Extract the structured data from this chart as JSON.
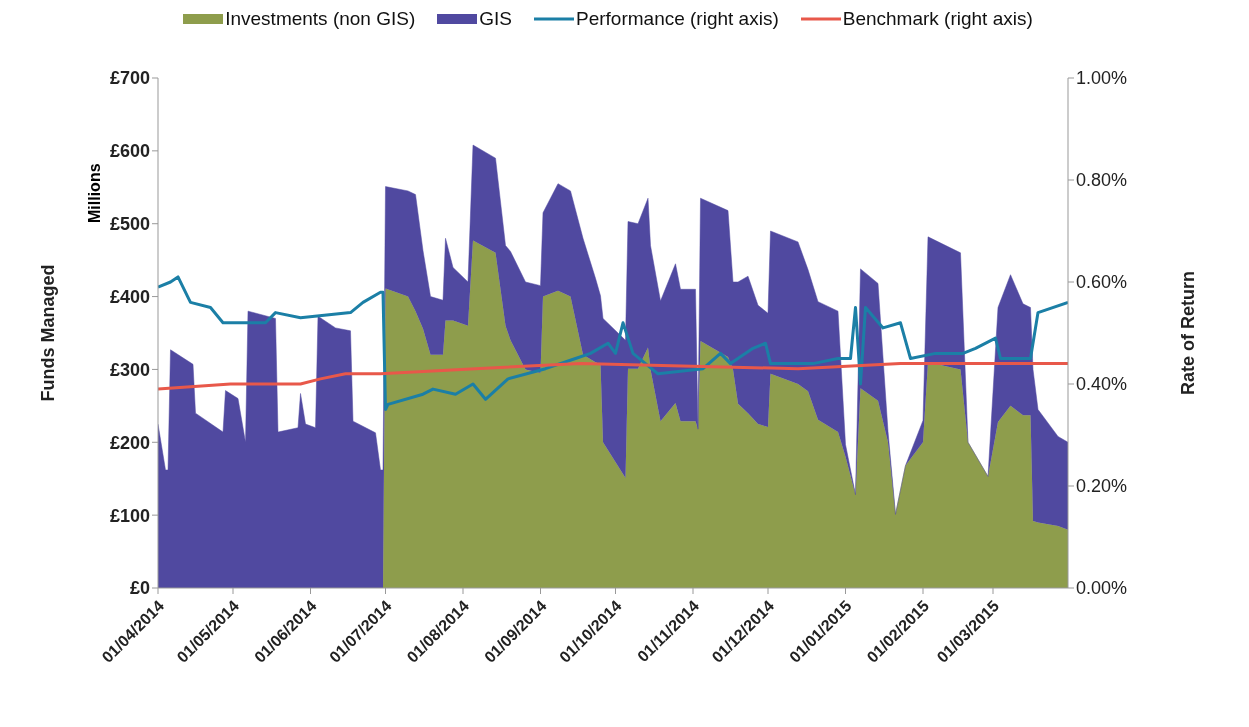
{
  "chart_data": {
    "type": "area",
    "stacked": true,
    "legend": "top",
    "ylabel": "Funds Managed",
    "y2label": "Rate of Return",
    "annotations": [
      "Millions"
    ],
    "x": [
      "2014-04-01",
      "2014-04-04",
      "2014-04-05",
      "2014-04-06",
      "2014-04-15",
      "2014-04-16",
      "2014-04-27",
      "2014-04-28",
      "2014-05-03",
      "2014-05-06",
      "2014-05-07",
      "2014-05-18",
      "2014-05-19",
      "2014-05-27",
      "2014-05-28",
      "2014-05-30",
      "2014-06-03",
      "2014-06-04",
      "2014-06-11",
      "2014-06-17",
      "2014-06-18",
      "2014-06-27",
      "2014-06-29",
      "2014-06-30",
      "2014-07-01",
      "2014-07-10",
      "2014-07-13",
      "2014-07-16",
      "2014-07-19",
      "2014-07-24",
      "2014-07-25",
      "2014-07-28",
      "2014-08-03",
      "2014-08-05",
      "2014-08-14",
      "2014-08-18",
      "2014-08-20",
      "2014-08-26",
      "2014-09-01",
      "2014-09-02",
      "2014-09-08",
      "2014-09-13",
      "2014-09-18",
      "2014-09-23",
      "2014-09-25",
      "2014-09-26",
      "2014-10-05",
      "2014-10-06",
      "2014-10-10",
      "2014-10-14",
      "2014-10-15",
      "2014-10-19",
      "2014-10-25",
      "2014-10-27",
      "2014-11-02",
      "2014-11-03",
      "2014-11-04",
      "2014-11-15",
      "2014-11-17",
      "2014-11-19",
      "2014-11-23",
      "2014-11-27",
      "2014-12-01",
      "2014-12-02",
      "2014-12-13",
      "2014-12-17",
      "2014-12-21",
      "2014-12-29",
      "2015-01-01",
      "2015-01-05",
      "2015-01-07",
      "2015-01-14",
      "2015-01-18",
      "2015-01-21",
      "2015-01-25",
      "2015-02-01",
      "2015-02-03",
      "2015-02-16",
      "2015-02-19",
      "2015-02-27",
      "2015-03-03",
      "2015-03-08",
      "2015-03-13",
      "2015-03-16",
      "2015-03-17",
      "2015-03-19",
      "2015-03-27",
      "2015-03-31"
    ],
    "series": [
      {
        "name": "Investments (non GIS)",
        "color": "#8e9d4c",
        "values": [
          0,
          0,
          0,
          0,
          0,
          0,
          0,
          0,
          0,
          0,
          0,
          0,
          0,
          0,
          0,
          0,
          0,
          0,
          0,
          0,
          0,
          0,
          0,
          0,
          411,
          400,
          380,
          356,
          320,
          320,
          367,
          367,
          360,
          477,
          460,
          360,
          340,
          300,
          295,
          400,
          408,
          400,
          320,
          310,
          307,
          200,
          151,
          301,
          301,
          330,
          300,
          229,
          254,
          229,
          229,
          218,
          339,
          317,
          300,
          253,
          240,
          225,
          221,
          294,
          280,
          270,
          231,
          214,
          180,
          128,
          274,
          257,
          200,
          101,
          168,
          200,
          310,
          300,
          200,
          153,
          228,
          250,
          237,
          237,
          92,
          90,
          85,
          80
        ]
      },
      {
        "name": "GIS",
        "color": "#5049a0",
        "values": [
          225,
          162,
          162,
          327,
          307,
          240,
          214,
          271,
          260,
          200,
          380,
          370,
          214,
          220,
          267,
          225,
          220,
          373,
          357,
          353,
          229,
          213,
          162,
          162,
          140,
          145,
          160,
          107,
          80,
          75,
          113,
          73,
          60,
          131,
          130,
          110,
          122,
          120,
          120,
          115,
          147,
          145,
          160,
          115,
          94,
          170,
          189,
          202,
          199,
          205,
          170,
          165,
          191,
          181,
          181,
          0,
          196,
          201,
          120,
          167,
          188,
          163,
          156,
          196,
          195,
          167,
          162,
          166,
          17,
          0,
          164,
          161,
          15,
          0,
          0,
          30,
          172,
          160,
          0,
          0,
          157,
          180,
          153,
          148,
          208,
          155,
          123,
          120
        ]
      },
      {
        "name": "Performance (right axis)",
        "type": "line",
        "axis": "y2",
        "color": "#1b7fa6",
        "x": [
          "2014-04-01",
          "2014-04-06",
          "2014-04-09",
          "2014-04-13",
          "2014-04-14",
          "2014-04-22",
          "2014-04-27",
          "2014-05-06",
          "2014-05-14",
          "2014-05-18",
          "2014-05-28",
          "2014-06-17",
          "2014-06-22",
          "2014-06-29",
          "2014-06-30",
          "2014-07-01",
          "2014-07-02",
          "2014-07-16",
          "2014-07-20",
          "2014-07-29",
          "2014-08-05",
          "2014-08-10",
          "2014-08-19",
          "2014-09-03",
          "2014-09-15",
          "2014-09-21",
          "2014-09-28",
          "2014-10-01",
          "2014-10-04",
          "2014-10-08",
          "2014-10-18",
          "2014-11-05",
          "2014-11-12",
          "2014-11-16",
          "2014-11-25",
          "2014-11-30",
          "2014-12-02",
          "2014-12-19",
          "2014-12-29",
          "2015-01-03",
          "2015-01-05",
          "2015-01-07",
          "2015-01-09",
          "2015-01-16",
          "2015-01-23",
          "2015-01-27",
          "2015-02-06",
          "2015-02-17",
          "2015-02-22",
          "2015-03-02",
          "2015-03-04",
          "2015-03-16",
          "2015-03-19",
          "2015-03-31"
        ],
        "values": [
          0.59,
          0.6,
          0.61,
          0.57,
          0.56,
          0.55,
          0.52,
          0.52,
          0.52,
          0.54,
          0.53,
          0.54,
          0.56,
          0.58,
          0.58,
          0.35,
          0.36,
          0.38,
          0.39,
          0.38,
          0.4,
          0.37,
          0.41,
          0.43,
          0.45,
          0.46,
          0.48,
          0.46,
          0.52,
          0.46,
          0.42,
          0.43,
          0.46,
          0.44,
          0.47,
          0.48,
          0.44,
          0.44,
          0.45,
          0.45,
          0.55,
          0.4,
          0.55,
          0.51,
          0.52,
          0.45,
          0.46,
          0.46,
          0.47,
          0.49,
          0.45,
          0.45,
          0.54,
          0.56
        ]
      },
      {
        "name": "Benchmark (right axis)",
        "type": "line",
        "axis": "y2",
        "color": "#e8584a",
        "x": [
          "2014-04-01",
          "2014-04-30",
          "2014-05-28",
          "2014-06-05",
          "2014-06-15",
          "2014-06-29",
          "2014-08-06",
          "2014-09-17",
          "2014-12-13",
          "2015-01-23",
          "2015-03-06",
          "2015-03-31"
        ],
        "values": [
          0.39,
          0.4,
          0.4,
          0.41,
          0.42,
          0.42,
          0.43,
          0.44,
          0.43,
          0.44,
          0.44,
          0.44
        ]
      }
    ],
    "xlim": [
      "2014-04-01",
      "2015-03-31"
    ],
    "xticks": [
      {
        "value": "2014-04-01",
        "label": "01/04/2014"
      },
      {
        "value": "2014-05-01",
        "label": "01/05/2014"
      },
      {
        "value": "2014-06-01",
        "label": "01/06/2014"
      },
      {
        "value": "2014-07-01",
        "label": "01/07/2014"
      },
      {
        "value": "2014-08-01",
        "label": "01/08/2014"
      },
      {
        "value": "2014-09-01",
        "label": "01/09/2014"
      },
      {
        "value": "2014-10-01",
        "label": "01/10/2014"
      },
      {
        "value": "2014-11-01",
        "label": "01/11/2014"
      },
      {
        "value": "2014-12-01",
        "label": "01/12/2014"
      },
      {
        "value": "2015-01-01",
        "label": "01/01/2015"
      },
      {
        "value": "2015-02-01",
        "label": "01/02/2015"
      },
      {
        "value": "2015-03-01",
        "label": "01/03/2015"
      }
    ],
    "ylim": [
      0,
      700
    ],
    "yticks": [
      {
        "value": 0,
        "label": "£0"
      },
      {
        "value": 100,
        "label": "£100"
      },
      {
        "value": 200,
        "label": "£200"
      },
      {
        "value": 300,
        "label": "£300"
      },
      {
        "value": 400,
        "label": "£400"
      },
      {
        "value": 500,
        "label": "£500"
      },
      {
        "value": 600,
        "label": "£600"
      },
      {
        "value": 700,
        "label": "£700"
      }
    ],
    "y2lim": [
      0,
      1
    ],
    "y2ticks": [
      {
        "value": 0,
        "label": "0.00%"
      },
      {
        "value": 0.2,
        "label": "0.20%"
      },
      {
        "value": 0.4,
        "label": "0.40%"
      },
      {
        "value": 0.6,
        "label": "0.60%"
      },
      {
        "value": 0.8,
        "label": "0.80%"
      },
      {
        "value": 1,
        "label": "1.00%"
      }
    ]
  }
}
